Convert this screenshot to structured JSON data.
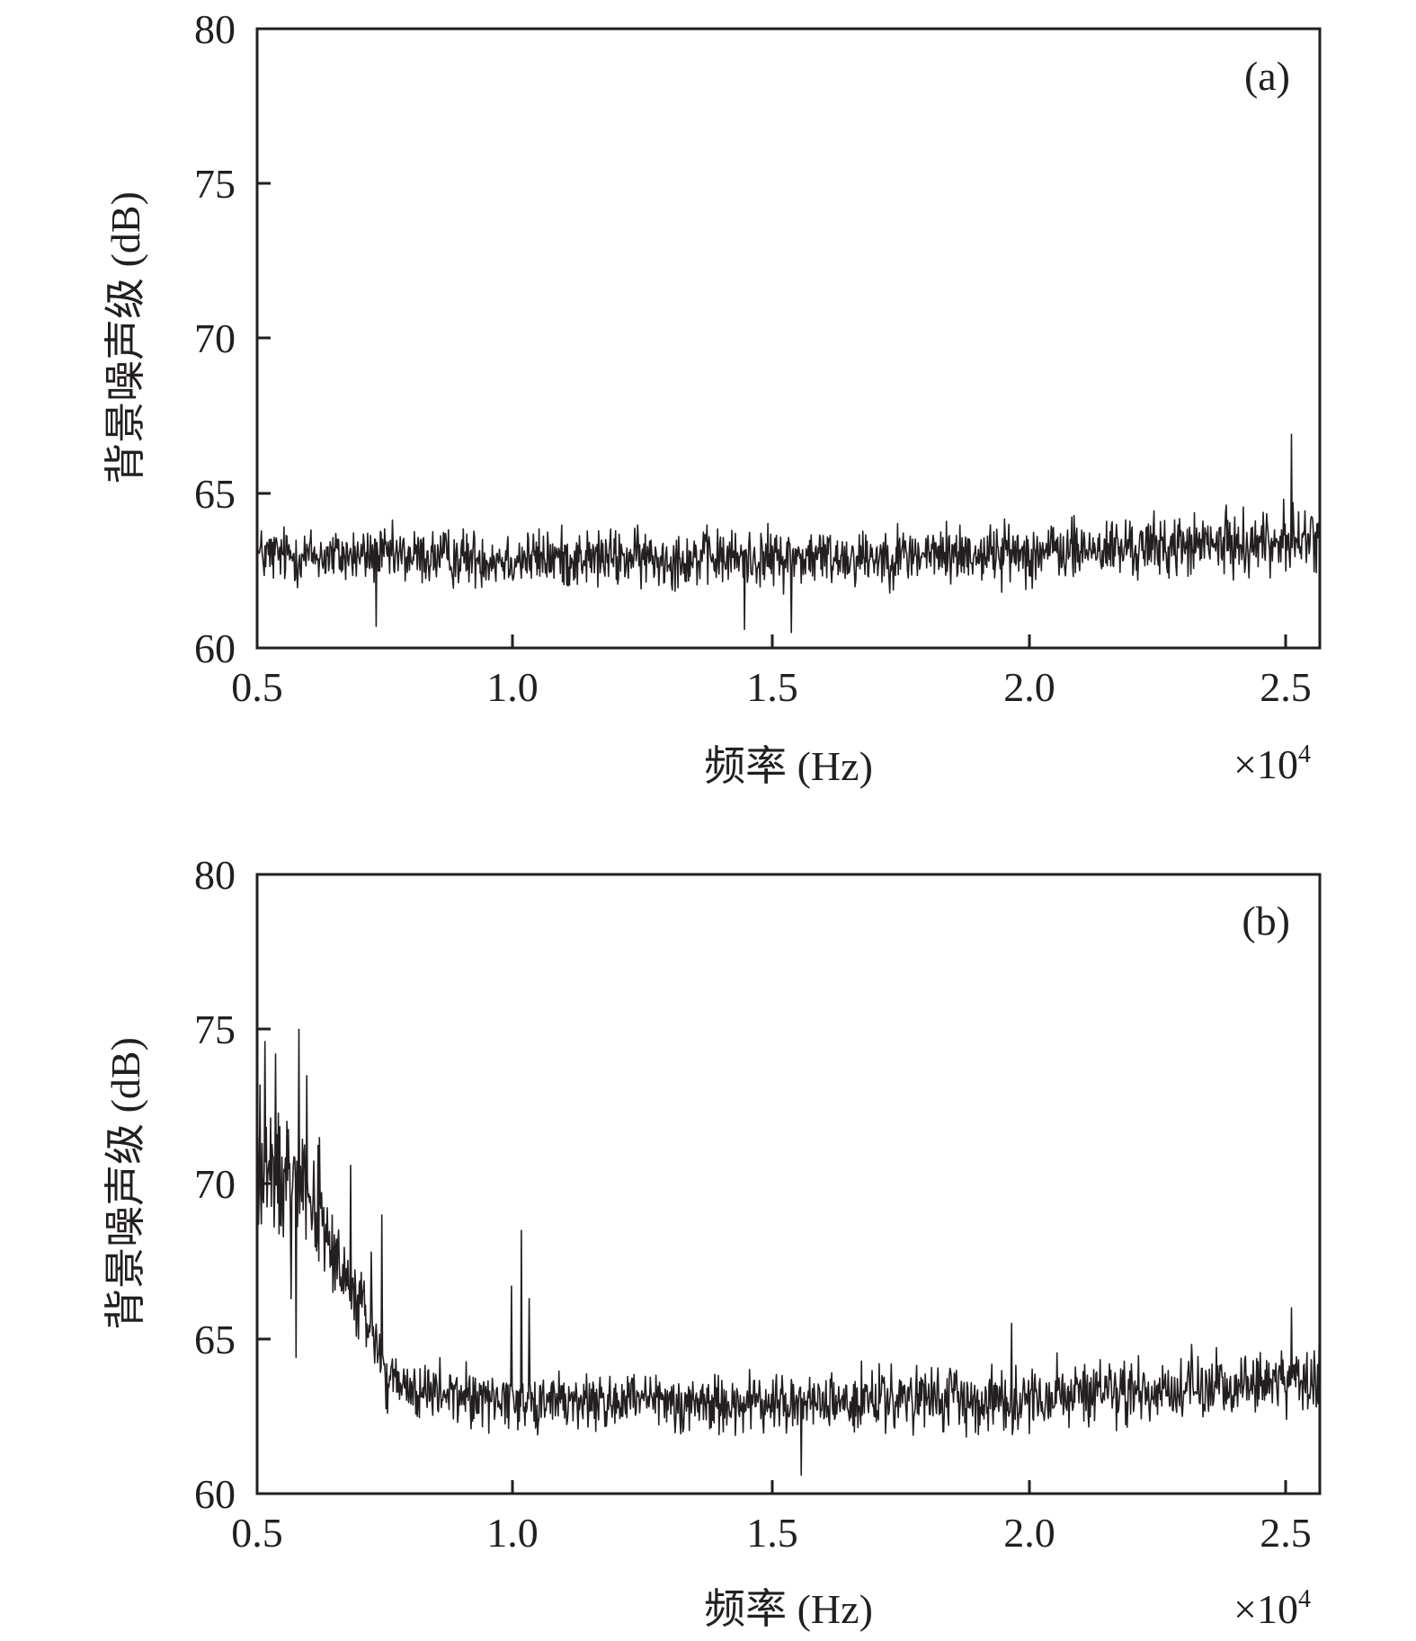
{
  "chart_data": [
    {
      "type": "line",
      "panel_label": "(a)",
      "xlabel": "频率 (Hz)",
      "ylabel": "背景噪声级 (dB)",
      "x_multiplier": "×10",
      "x_multiplier_exp": "4",
      "xlim": [
        0.5,
        2.55
      ],
      "ylim": [
        60,
        80
      ],
      "xticks": [
        0.5,
        1.0,
        1.5,
        2.0,
        2.5
      ],
      "xtick_labels": [
        "0.5",
        "1.0",
        "1.5",
        "2.0",
        "2.5"
      ],
      "yticks": [
        60,
        65,
        70,
        75,
        80
      ],
      "ytick_labels": [
        "60",
        "65",
        "70",
        "75",
        "80"
      ],
      "grid": false,
      "line_color": "#231f20",
      "baseline": [
        [
          0.5,
          63.0
        ],
        [
          1.0,
          62.9
        ],
        [
          1.5,
          62.9
        ],
        [
          2.0,
          63.1
        ],
        [
          2.3,
          63.3
        ],
        [
          2.55,
          63.5
        ]
      ],
      "band_half_width": [
        [
          0.5,
          1.1
        ],
        [
          1.5,
          1.1
        ],
        [
          2.55,
          1.2
        ]
      ],
      "peaks": [
        {
          "x": 2.495,
          "y": 66.9
        },
        {
          "x": 2.48,
          "y": 64.8
        },
        {
          "x": 1.44,
          "y": 60.6
        },
        {
          "x": 1.53,
          "y": 60.5
        },
        {
          "x": 0.73,
          "y": 60.7
        }
      ]
    },
    {
      "type": "line",
      "panel_label": "(b)",
      "xlabel": "频率 (Hz)",
      "ylabel": "背景噪声级 (dB)",
      "x_multiplier": "×10",
      "x_multiplier_exp": "4",
      "xlim": [
        0.5,
        2.55
      ],
      "ylim": [
        60,
        80
      ],
      "xticks": [
        0.5,
        1.0,
        1.5,
        2.0,
        2.5
      ],
      "xtick_labels": [
        "0.5",
        "1.0",
        "1.5",
        "2.0",
        "2.5"
      ],
      "yticks": [
        60,
        65,
        70,
        75,
        80
      ],
      "ytick_labels": [
        "60",
        "65",
        "70",
        "75",
        "80"
      ],
      "grid": false,
      "line_color": "#231f20",
      "baseline": [
        [
          0.5,
          70.0
        ],
        [
          0.55,
          70.3
        ],
        [
          0.58,
          70.8
        ],
        [
          0.62,
          69.0
        ],
        [
          0.66,
          67.0
        ],
        [
          0.7,
          66.0
        ],
        [
          0.73,
          65.0
        ],
        [
          0.75,
          63.6
        ],
        [
          0.8,
          63.3
        ],
        [
          1.0,
          63.0
        ],
        [
          1.5,
          62.9
        ],
        [
          2.0,
          63.1
        ],
        [
          2.3,
          63.4
        ],
        [
          2.55,
          63.7
        ]
      ],
      "band_half_width": [
        [
          0.5,
          2.6
        ],
        [
          0.62,
          2.0
        ],
        [
          0.72,
          1.5
        ],
        [
          0.78,
          1.1
        ],
        [
          2.55,
          1.2
        ]
      ],
      "peaks": [
        {
          "x": 0.505,
          "y": 73.2
        },
        {
          "x": 0.515,
          "y": 74.6
        },
        {
          "x": 0.535,
          "y": 74.2
        },
        {
          "x": 0.565,
          "y": 66.3
        },
        {
          "x": 0.58,
          "y": 75.0
        },
        {
          "x": 0.595,
          "y": 73.5
        },
        {
          "x": 0.62,
          "y": 71.5
        },
        {
          "x": 0.645,
          "y": 69.0
        },
        {
          "x": 0.68,
          "y": 70.6
        },
        {
          "x": 0.72,
          "y": 67.8
        },
        {
          "x": 0.74,
          "y": 69.0
        },
        {
          "x": 0.575,
          "y": 64.4
        },
        {
          "x": 0.99,
          "y": 66.7
        },
        {
          "x": 1.01,
          "y": 68.5
        },
        {
          "x": 1.025,
          "y": 66.3
        },
        {
          "x": 1.55,
          "y": 60.6
        },
        {
          "x": 1.955,
          "y": 65.5
        },
        {
          "x": 2.495,
          "y": 66.0
        }
      ]
    }
  ]
}
